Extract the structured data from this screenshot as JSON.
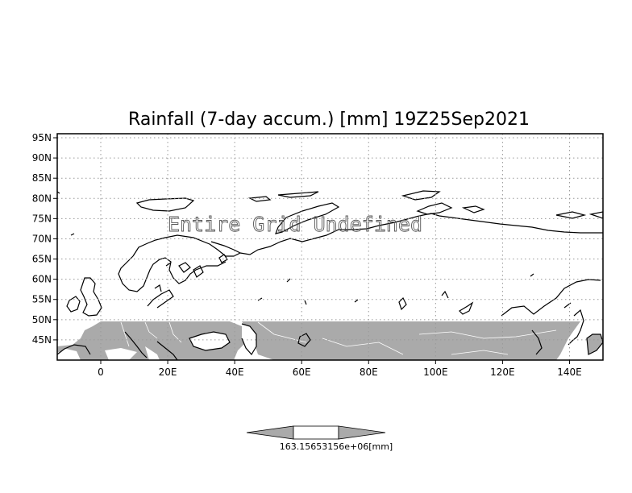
{
  "map": {
    "title": "Rainfall (7-day accum.) [mm] 19Z25Sep2021",
    "undefined_message": "Entire Grid Undefined",
    "lon_range": [
      -13,
      150
    ],
    "lat_range": [
      40,
      96
    ],
    "lat_ticks": [
      "95N",
      "90N",
      "85N",
      "80N",
      "75N",
      "70N",
      "65N",
      "60N",
      "55N",
      "50N",
      "45N"
    ],
    "lon_ticks": [
      "0",
      "20E",
      "40E",
      "60E",
      "80E",
      "100E",
      "120E",
      "140E"
    ],
    "shaded_region": {
      "lat_max": 50,
      "lon_max": 137,
      "fill": "#aaaaaa"
    },
    "grid": true,
    "colors": {
      "grid": "#999999",
      "coast": "#000000",
      "shade": "#aaaaaa",
      "border": "#ffffff"
    }
  },
  "colorbar": {
    "label": "163.15653156e+06[mm]",
    "fill_left": "#aaaaaa",
    "fill_mid": "#ffffff",
    "fill_right": "#aaaaaa"
  }
}
